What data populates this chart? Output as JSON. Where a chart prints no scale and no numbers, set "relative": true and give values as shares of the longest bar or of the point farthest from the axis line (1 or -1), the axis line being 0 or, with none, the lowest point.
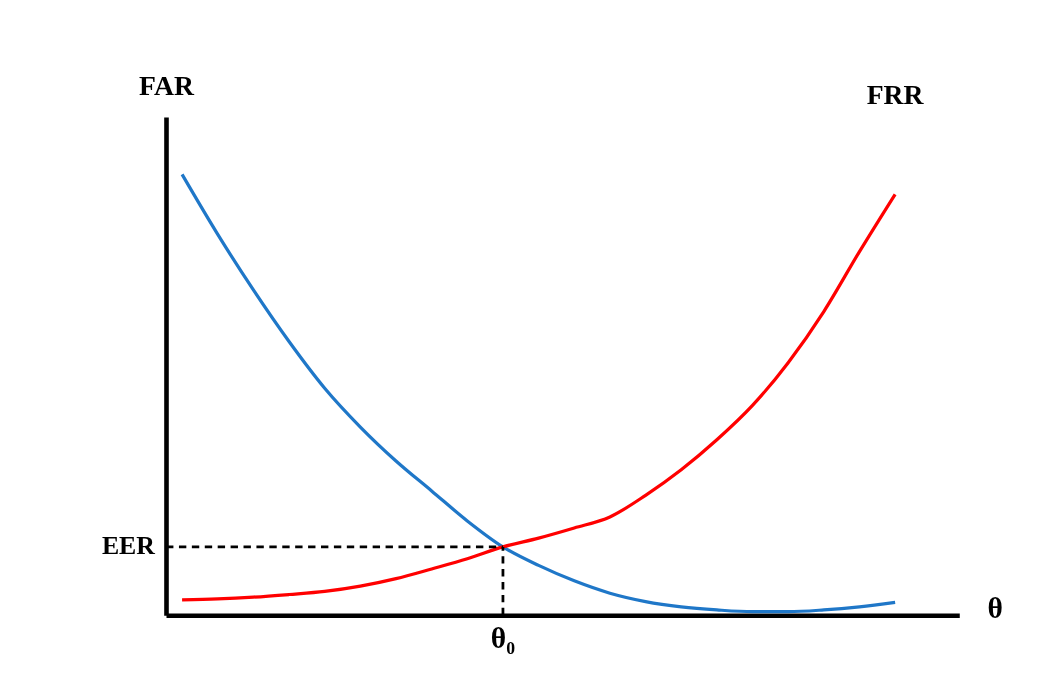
{
  "chart_data": {
    "type": "line",
    "relative": true,
    "xlabel": "θ",
    "ylabel": "FAR",
    "categories": [
      null,
      null,
      null,
      null,
      null,
      null,
      null,
      null,
      null,
      null,
      null,
      null,
      null,
      null,
      null,
      null,
      null,
      null,
      null,
      null,
      null
    ],
    "series": [
      {
        "color": "#1f77c8",
        "values": [
          1.0,
          0.864,
          0.738,
          0.621,
          0.515,
          0.427,
          0.35,
          0.282,
          0.214,
          0.155,
          0.113,
          0.078,
          0.05,
          0.031,
          0.019,
          0.012,
          0.008,
          0.008,
          0.012,
          0.019,
          0.029
        ]
      },
      {
        "color": "#ff0000",
        "values": [
          0.035,
          0.037,
          0.041,
          0.047,
          0.054,
          0.066,
          0.083,
          0.105,
          0.128,
          0.155,
          0.175,
          0.198,
          0.223,
          0.272,
          0.33,
          0.398,
          0.476,
          0.573,
          0.689,
          0.825,
          0.955
        ]
      }
    ],
    "ref_lines": [
      {
        "axis": "y",
        "value": 0.155,
        "label": "EER",
        "color": "#000000",
        "line_style": "dashed"
      }
    ],
    "annotations": [
      "θ₀",
      "FRR"
    ]
  }
}
